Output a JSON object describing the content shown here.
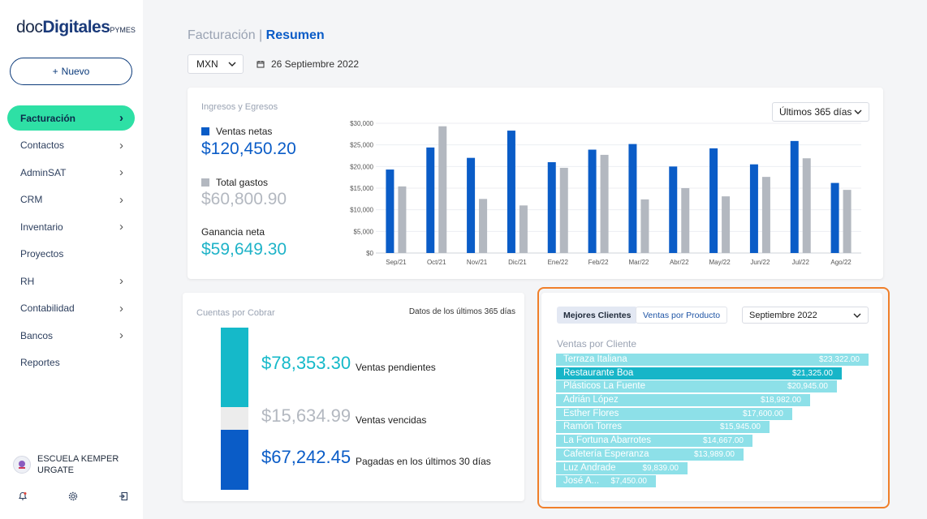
{
  "brand": {
    "doc": "doc",
    "digitales": "Digitales",
    "pymes": "PYMES"
  },
  "sidebar": {
    "new_button": {
      "icon": "+",
      "label": "Nuevo"
    },
    "items": [
      {
        "label": "Facturación",
        "chevron": "›",
        "active": true
      },
      {
        "label": "Contactos",
        "chevron": "›"
      },
      {
        "label": "AdminSAT",
        "chevron": "›"
      },
      {
        "label": "CRM",
        "chevron": "›"
      },
      {
        "label": "Inventario",
        "chevron": "›"
      },
      {
        "label": "Proyectos",
        "chevron": ""
      },
      {
        "label": "RH",
        "chevron": "›"
      },
      {
        "label": "Contabilidad",
        "chevron": "›"
      },
      {
        "label": "Bancos",
        "chevron": "›"
      },
      {
        "label": "Reportes",
        "chevron": ""
      }
    ],
    "organization": "ESCUELA KEMPER URGATE",
    "bottom_icons": [
      "bell-icon",
      "gear-icon",
      "logout-icon"
    ]
  },
  "header": {
    "section": "Facturación",
    "separator": "|",
    "page": "Resumen",
    "currency": "MXN",
    "date": "26 Septiembre 2022"
  },
  "income_card": {
    "title": "Ingresos y Egresos",
    "range": "Últimos 365 días",
    "net_sales": {
      "label": "Ventas netas",
      "value": "$120,450.20",
      "color": "#0a5cc7"
    },
    "total_expenses": {
      "label": "Total gastos",
      "value": "$60,800.90",
      "color": "#b3b8c0"
    },
    "net_profit": {
      "label": "Ganancia neta",
      "value": "$59,649.30",
      "color": "#1fb3c8"
    }
  },
  "chart_data": {
    "type": "bar",
    "categories": [
      "Sep/21",
      "Oct/21",
      "Nov/21",
      "Dic/21",
      "Ene/22",
      "Feb/22",
      "Mar/22",
      "Abr/22",
      "May/22",
      "Jun/22",
      "Jul/22",
      "Ago/22"
    ],
    "series": [
      {
        "name": "Ventas netas",
        "color": "#0a5cc7",
        "values": [
          19300,
          24400,
          22000,
          28300,
          21000,
          23900,
          25200,
          20000,
          24200,
          20500,
          25900,
          16200
        ]
      },
      {
        "name": "Total gastos",
        "color": "#b3b8c0",
        "values": [
          15400,
          29300,
          12500,
          11000,
          19700,
          22700,
          12400,
          15000,
          13100,
          17600,
          21900,
          14600
        ]
      }
    ],
    "yticks": [
      "$0",
      "$5,000",
      "$10,000",
      "$15,000",
      "$20,000",
      "$25,000",
      "$30,000"
    ],
    "ylim": [
      0,
      30000
    ],
    "grid": true
  },
  "receivables": {
    "title": "Cuentas por Cobrar",
    "note": "Datos de los últimos 365 días",
    "rows": [
      {
        "amount": "$78,353.30",
        "label": "Ventas pendientes",
        "color": "#15b9c9",
        "fraction": 0.49
      },
      {
        "amount": "$15,634.99",
        "label": "Ventas vencidas",
        "color": "#ececec",
        "fraction": 0.14
      },
      {
        "amount": "$67,242.45",
        "label": "Pagadas en los últimos 30 días",
        "color": "#0a5cc7",
        "fraction": 0.37
      }
    ]
  },
  "clients": {
    "tabs": [
      {
        "label": "Mejores Clientes",
        "active": true
      },
      {
        "label": "Ventas por Producto",
        "active": false
      }
    ],
    "month": "Septiembre 2022",
    "subtitle": "Ventas por Cliente",
    "bars": [
      {
        "name": "Terraza Italiana",
        "value": "$23,322.00",
        "amount": 23322
      },
      {
        "name": "Restaurante Boa",
        "value": "$21,325.00",
        "amount": 21325,
        "selected": true
      },
      {
        "name": "Plásticos La Fuente",
        "value": "$20,945.00",
        "amount": 20945
      },
      {
        "name": "Adrián López",
        "value": "$18,982.00",
        "amount": 18982
      },
      {
        "name": "Esther Flores",
        "value": "$17,600.00",
        "amount": 17600
      },
      {
        "name": "Ramón Torres",
        "value": "$15,945.00",
        "amount": 15945
      },
      {
        "name": "La Fortuna Abarrotes",
        "value": "$14,667.00",
        "amount": 14667
      },
      {
        "name": "Cafetería Esperanza",
        "value": "$13,989.00",
        "amount": 13989
      },
      {
        "name": "Luz Andrade",
        "value": "$9,839.00",
        "amount": 9839
      },
      {
        "name": "José A...",
        "value": "$7,450.00",
        "amount": 7450
      }
    ]
  }
}
